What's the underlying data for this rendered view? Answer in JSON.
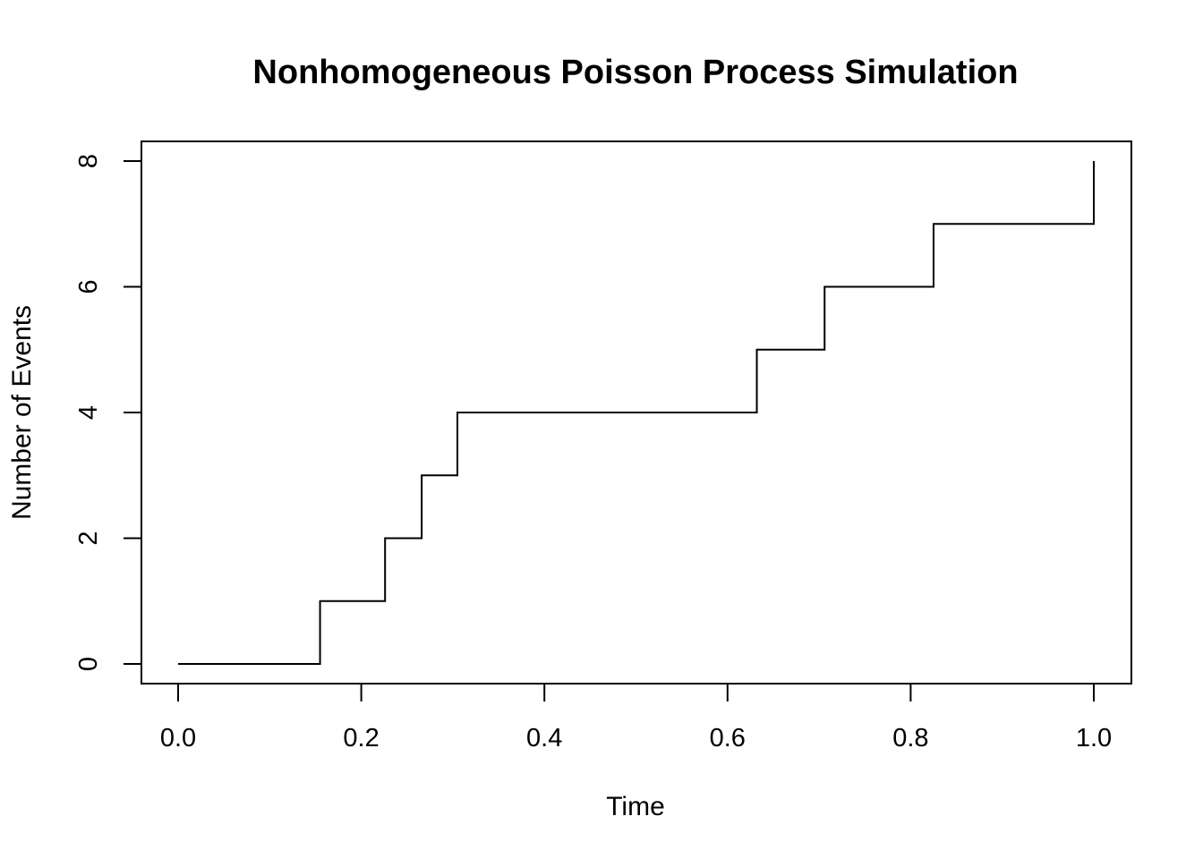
{
  "chart_data": {
    "type": "line",
    "title": "Nonhomogeneous Poisson Process Simulation",
    "xlabel": "Time",
    "ylabel": "Number of Events",
    "xlim": [
      0,
      1
    ],
    "ylim": [
      0,
      8
    ],
    "x_ticks": [
      0.0,
      0.2,
      0.4,
      0.6,
      0.8,
      1.0
    ],
    "x_tick_labels": [
      "0.0",
      "0.2",
      "0.4",
      "0.6",
      "0.8",
      "1.0"
    ],
    "y_ticks": [
      0,
      2,
      4,
      6,
      8
    ],
    "y_tick_labels": [
      "0",
      "2",
      "4",
      "6",
      "8"
    ],
    "grid": false,
    "step": "post",
    "series": [
      {
        "color": "#000000",
        "x": [
          0.0,
          0.155,
          0.226,
          0.266,
          0.305,
          0.632,
          0.706,
          0.825,
          1.0
        ],
        "y": [
          0,
          1,
          2,
          3,
          4,
          5,
          6,
          7,
          8
        ]
      }
    ]
  }
}
